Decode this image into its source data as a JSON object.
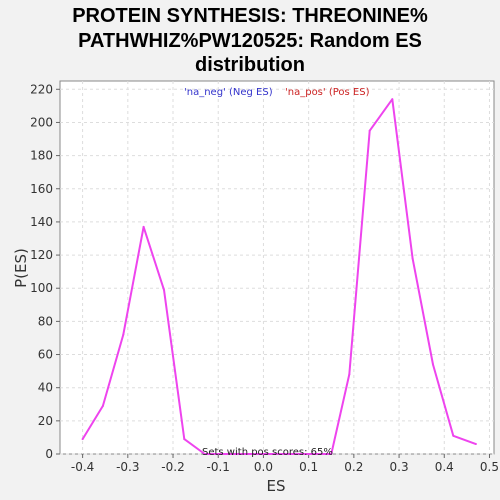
{
  "chart_data": {
    "type": "line",
    "title_lines": [
      "PROTEIN SYNTHESIS: THREONINE%",
      "PATHWHIZ%PW120525: Random ES",
      "distribution"
    ],
    "xlabel": "ES",
    "ylabel": "P(ES)",
    "xlim": [
      -0.45,
      0.51
    ],
    "ylim": [
      0,
      225
    ],
    "x_ticks": [
      {
        "value": -0.4,
        "label": "-0.4"
      },
      {
        "value": -0.3,
        "label": "-0.3"
      },
      {
        "value": -0.2,
        "label": "-0.2"
      },
      {
        "value": -0.1,
        "label": "-0.1"
      },
      {
        "value": 0.0,
        "label": "0.0"
      },
      {
        "value": 0.1,
        "label": "0.1"
      },
      {
        "value": 0.2,
        "label": "0.2"
      },
      {
        "value": 0.3,
        "label": "0.3"
      },
      {
        "value": 0.4,
        "label": "0.4"
      },
      {
        "value": 0.5,
        "label": "0.5"
      }
    ],
    "y_ticks": [
      {
        "value": 0,
        "label": "0"
      },
      {
        "value": 20,
        "label": "20"
      },
      {
        "value": 40,
        "label": "40"
      },
      {
        "value": 60,
        "label": "60"
      },
      {
        "value": 80,
        "label": "80"
      },
      {
        "value": 100,
        "label": "100"
      },
      {
        "value": 120,
        "label": "120"
      },
      {
        "value": 140,
        "label": "140"
      },
      {
        "value": 160,
        "label": "160"
      },
      {
        "value": 180,
        "label": "180"
      },
      {
        "value": 200,
        "label": "200"
      },
      {
        "value": 220,
        "label": "220"
      }
    ],
    "grid": true,
    "legend": [
      {
        "label": "'na_neg' (Neg ES)",
        "color": "#3333cc"
      },
      {
        "label": "'na_pos' (Pos ES)",
        "color": "#cc2222"
      }
    ],
    "legend_position": "top",
    "annotation": "Sets with pos scores: 65%",
    "series": [
      {
        "color": "#ee44ee",
        "points": [
          [
            -0.4,
            9
          ],
          [
            -0.355,
            29
          ],
          [
            -0.31,
            72
          ],
          [
            -0.265,
            137
          ],
          [
            -0.22,
            99
          ],
          [
            -0.175,
            9
          ],
          [
            -0.13,
            0
          ],
          [
            0.15,
            0
          ],
          [
            0.19,
            48
          ],
          [
            0.235,
            195
          ],
          [
            0.285,
            214
          ],
          [
            0.33,
            118
          ],
          [
            0.375,
            54
          ],
          [
            0.42,
            11
          ],
          [
            0.47,
            6
          ]
        ]
      }
    ]
  }
}
